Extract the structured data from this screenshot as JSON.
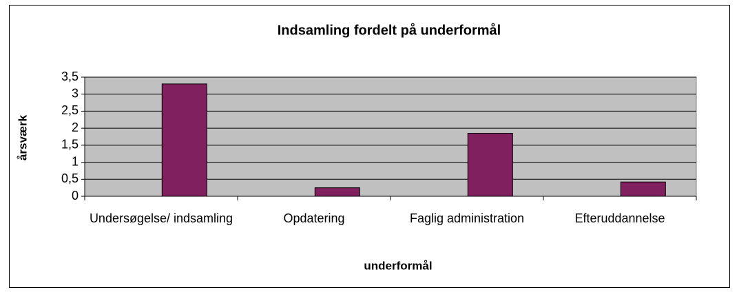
{
  "chart_data": {
    "type": "bar",
    "title": "Indsamling fordelt på underformål",
    "x_label": "underformål",
    "y_label": "årsværk",
    "categories": [
      "Undersøgelse/ indsamling",
      "Opdatering",
      "Faglig administration",
      "Efteruddannelse"
    ],
    "values": [
      3.3,
      0.25,
      1.85,
      0.42
    ],
    "color": "#80205f",
    "ylim": [
      0,
      3.5
    ],
    "yticks": [
      0,
      {
        "value": 0.5,
        "label": "0,5"
      },
      1,
      {
        "value": 1.5,
        "label": "1,5"
      },
      2,
      {
        "value": 2.5,
        "label": "2,5"
      },
      3,
      {
        "value": 3.5,
        "label": "3,5"
      }
    ],
    "grid": true
  }
}
